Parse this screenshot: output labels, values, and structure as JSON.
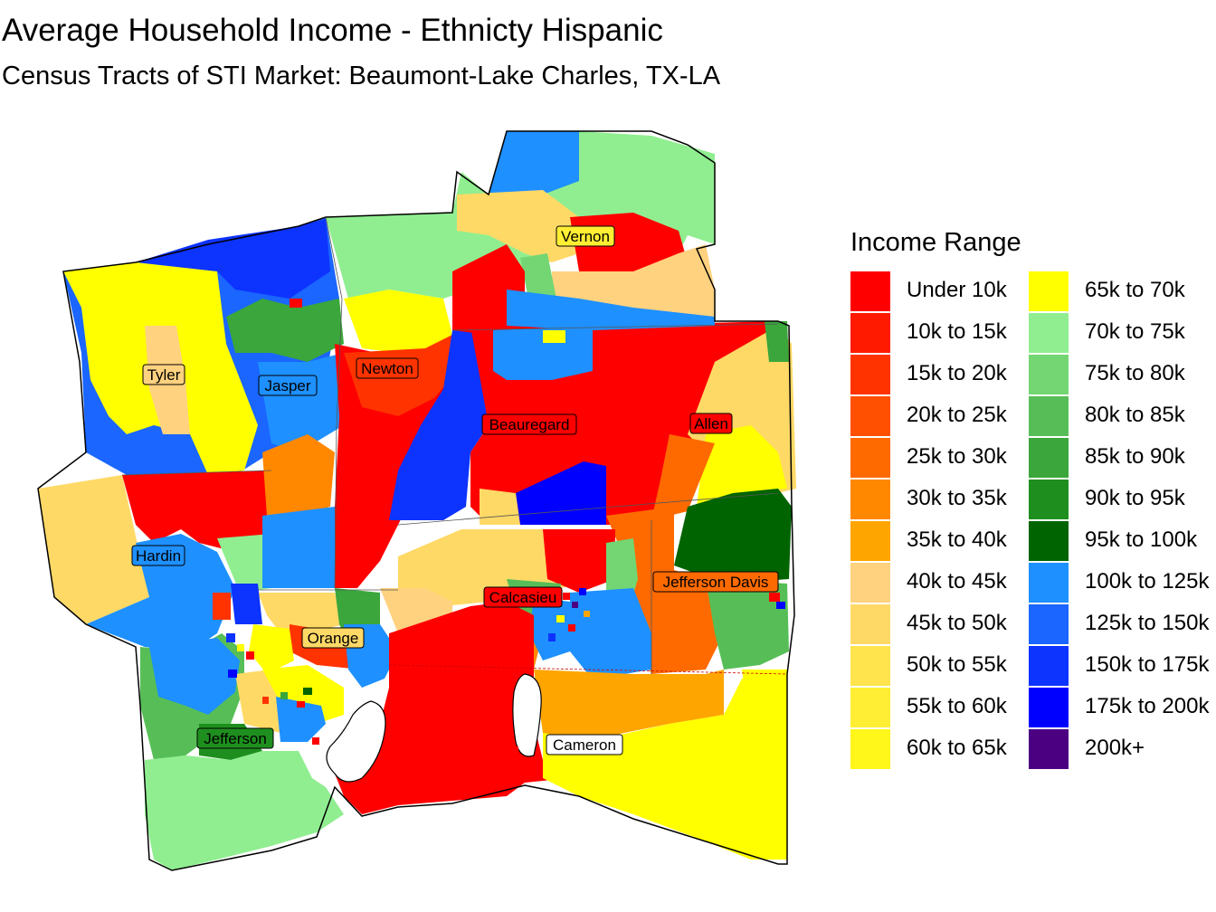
{
  "title": "Average Household Income - Ethnicty Hispanic",
  "subtitle": "Census Tracts of STI Market: Beaumont-Lake Charles, TX-LA",
  "legend": {
    "title": "Income Range",
    "items": [
      {
        "label": "Under 10k",
        "color": "#FF0000"
      },
      {
        "label": "10k to 15k",
        "color": "#FF1A00"
      },
      {
        "label": "15k to 20k",
        "color": "#FF3300"
      },
      {
        "label": "20k to 25k",
        "color": "#FF4F00"
      },
      {
        "label": "25k to 30k",
        "color": "#FF6A00"
      },
      {
        "label": "30k to 35k",
        "color": "#FF8800"
      },
      {
        "label": "35k to 40k",
        "color": "#FFA500"
      },
      {
        "label": "40k to 45k",
        "color": "#FFD27F"
      },
      {
        "label": "45k to 50k",
        "color": "#FFD966"
      },
      {
        "label": "50k to 55k",
        "color": "#FFE44D"
      },
      {
        "label": "55k to 60k",
        "color": "#FFEE33"
      },
      {
        "label": "60k to 65k",
        "color": "#FFF61A"
      },
      {
        "label": "65k to 70k",
        "color": "#FFFF00"
      },
      {
        "label": "70k to 75k",
        "color": "#90EE90"
      },
      {
        "label": "75k to 80k",
        "color": "#73D673"
      },
      {
        "label": "80k to 85k",
        "color": "#57BE57"
      },
      {
        "label": "85k to 90k",
        "color": "#3BA63B"
      },
      {
        "label": "90k to 95k",
        "color": "#1E8F1E"
      },
      {
        "label": "95k to 100k",
        "color": "#006400"
      },
      {
        "label": "100k to 125k",
        "color": "#1E90FF"
      },
      {
        "label": "125k to 150k",
        "color": "#1A66FF"
      },
      {
        "label": "150k to 175k",
        "color": "#0D33FF"
      },
      {
        "label": "175k to 200k",
        "color": "#0000FF"
      },
      {
        "label": "200k+",
        "color": "#4B0082"
      }
    ]
  },
  "counties": [
    "Vernon",
    "Tyler",
    "Jasper",
    "Newton",
    "Beauregard",
    "Allen",
    "Hardin",
    "Jefferson Davis",
    "Calcasieu",
    "Orange",
    "Jefferson",
    "Cameron"
  ]
}
